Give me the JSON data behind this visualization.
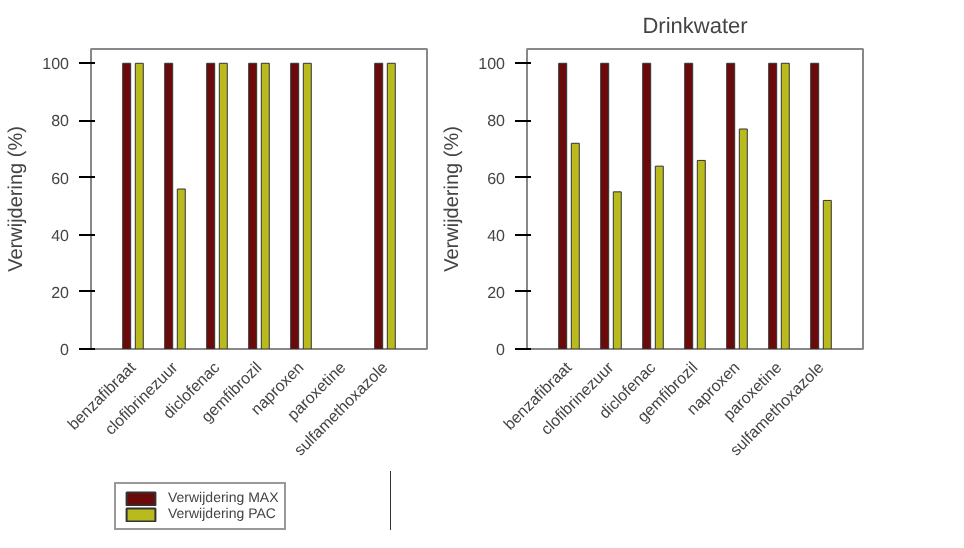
{
  "chart_data": [
    {
      "type": "bar",
      "ylabel": "Verwijdering (%)",
      "categories": [
        "benzafibraat",
        "clofibrinezuur",
        "diclofenac",
        "gemfibrozil",
        "naproxen",
        "paroxetine",
        "sulfamethoxazole"
      ],
      "series": [
        {
          "name": "Verwijdering MAX",
          "color": "#6b0a0a",
          "values": [
            100,
            100,
            100,
            100,
            100,
            null,
            100
          ]
        },
        {
          "name": "Verwijdering PAC",
          "color": "#b8ba1e",
          "values": [
            100,
            56,
            100,
            100,
            100,
            null,
            100
          ]
        }
      ],
      "ylim": [
        0,
        105
      ],
      "yticks": [
        0,
        20,
        40,
        60,
        80,
        100
      ],
      "grid": false,
      "legend": "bottom"
    },
    {
      "type": "bar",
      "title": "Drinkwater",
      "ylabel": "Verwijdering (%)",
      "categories": [
        "benzafibraat",
        "clofibrinezuur",
        "diclofenac",
        "gemfibrozil",
        "naproxen",
        "paroxetine",
        "sulfamethoxazole"
      ],
      "series": [
        {
          "color": "#6b0a0a",
          "values": [
            100,
            100,
            100,
            100,
            100,
            100,
            100
          ]
        },
        {
          "color": "#b8ba1e",
          "values": [
            72,
            55,
            64,
            66,
            77,
            100,
            52
          ]
        }
      ],
      "ylim": [
        0,
        105
      ],
      "yticks": [
        0,
        20,
        40,
        60,
        80,
        100
      ],
      "grid": false
    }
  ]
}
